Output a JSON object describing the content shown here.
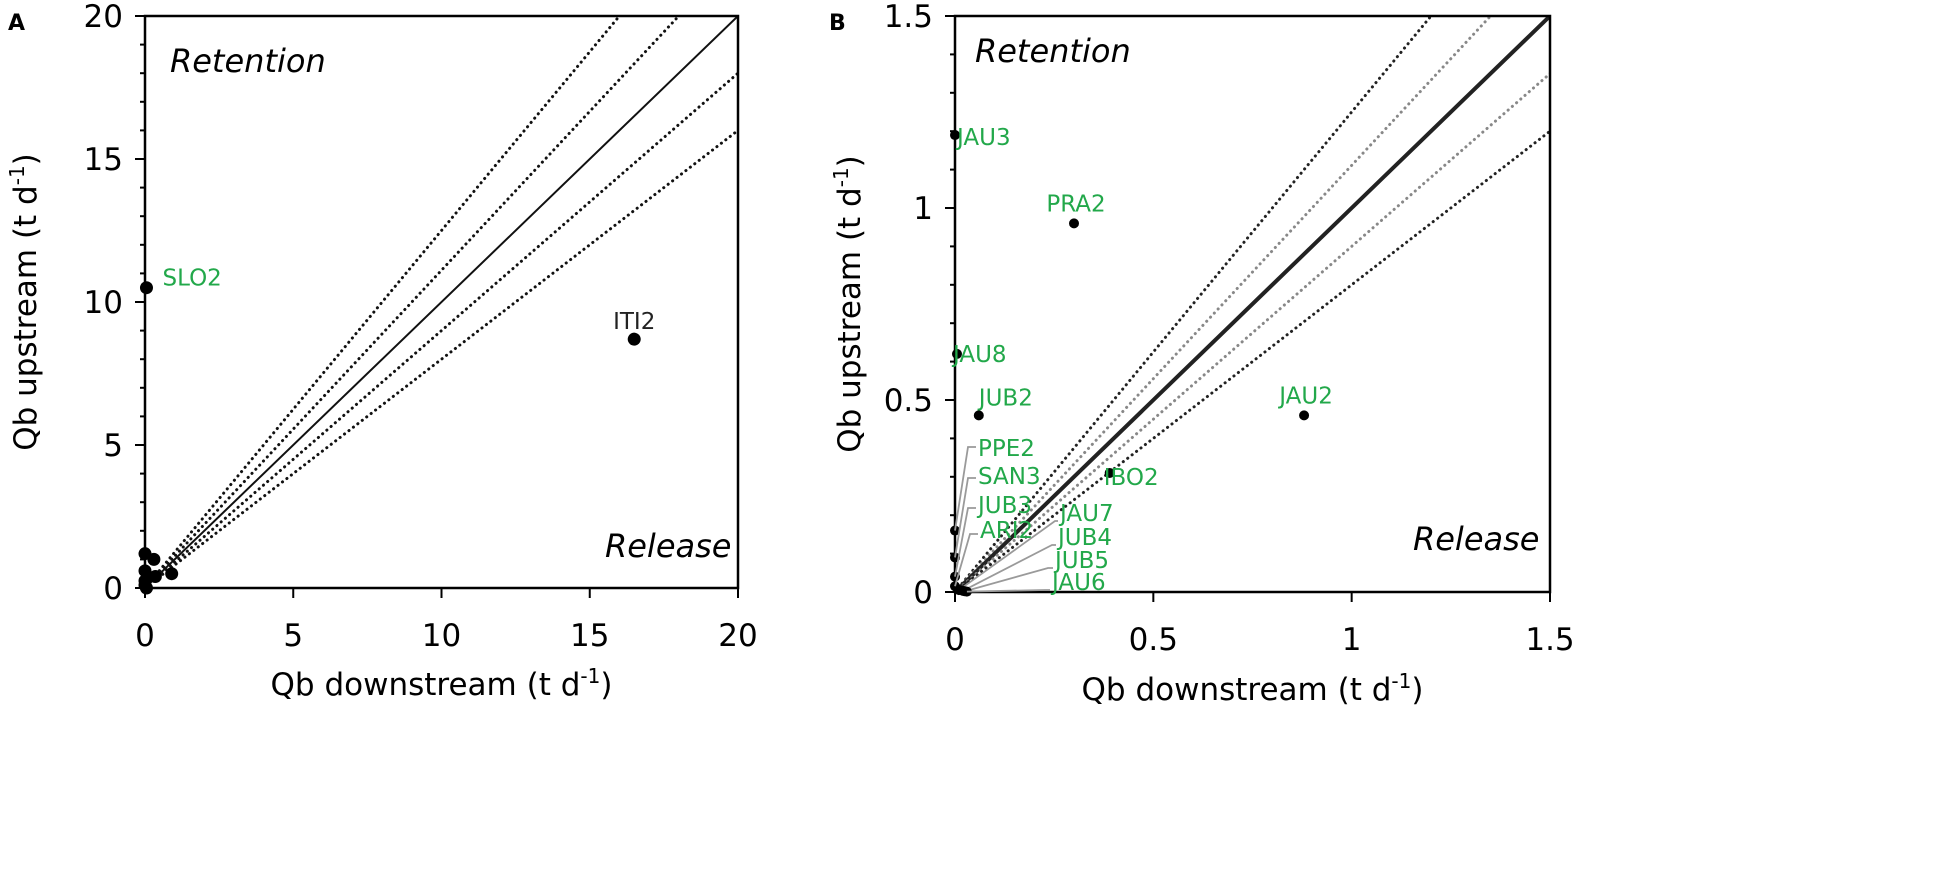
{
  "chart_data": [
    {
      "panel": "A",
      "type": "scatter",
      "xlabel": "Qb downstream (t d",
      "ylabel": "Qb upstream (t d",
      "unit_superscript": "-1",
      "xlim": [
        0,
        20
      ],
      "ylim": [
        0,
        20
      ],
      "xticks": [
        0,
        5,
        10,
        15,
        20
      ],
      "yticks": [
        0,
        5,
        10,
        15,
        20
      ],
      "region_labels": {
        "upper": "Retention",
        "lower": "Release"
      },
      "reference_lines": [
        {
          "slope": 1.25,
          "style": "dotted"
        },
        {
          "slope": 1.111,
          "style": "dotted"
        },
        {
          "slope": 1.0,
          "style": "solid"
        },
        {
          "slope": 0.9,
          "style": "dotted"
        },
        {
          "slope": 0.8,
          "style": "dotted"
        }
      ],
      "points": [
        {
          "x": 0.05,
          "y": 10.5,
          "label": "SLO2",
          "label_color": "#22a84a"
        },
        {
          "x": 16.5,
          "y": 8.7,
          "label": "ITI2",
          "label_color": "#222222"
        },
        {
          "x": 0.0,
          "y": 1.2
        },
        {
          "x": 0.0,
          "y": 0.6
        },
        {
          "x": 0.0,
          "y": 0.25
        },
        {
          "x": 0.0,
          "y": 0.1
        },
        {
          "x": 0.05,
          "y": 0.0
        },
        {
          "x": 0.3,
          "y": 1.0
        },
        {
          "x": 0.35,
          "y": 0.4
        },
        {
          "x": 0.9,
          "y": 0.5
        }
      ]
    },
    {
      "panel": "B",
      "type": "scatter",
      "xlabel": "Qb downstream (t d",
      "ylabel": "Qb upstream (t d",
      "unit_superscript": "-1",
      "xlim": [
        0,
        1.5
      ],
      "ylim": [
        0,
        1.5
      ],
      "xticks": [
        0,
        0.5,
        1,
        1.5
      ],
      "yticks": [
        0,
        0.5,
        1,
        1.5
      ],
      "region_labels": {
        "upper": "Retention",
        "lower": "Release"
      },
      "reference_lines": [
        {
          "slope": 1.25,
          "style": "dotted",
          "color": "#222222"
        },
        {
          "slope": 1.111,
          "style": "dotted",
          "color": "#888888"
        },
        {
          "slope": 1.0,
          "style": "solid",
          "color": "#222222"
        },
        {
          "slope": 0.9,
          "style": "dotted",
          "color": "#888888"
        },
        {
          "slope": 0.8,
          "style": "dotted",
          "color": "#222222"
        }
      ],
      "points": [
        {
          "x": 0.0,
          "y": 1.19,
          "label": "JAU3"
        },
        {
          "x": 0.3,
          "y": 0.96,
          "label": "PRA2"
        },
        {
          "x": 0.005,
          "y": 0.62,
          "label": "JAU8"
        },
        {
          "x": 0.06,
          "y": 0.46,
          "label": "JUB2"
        },
        {
          "x": 0.88,
          "y": 0.46,
          "label": "JAU2"
        },
        {
          "x": 0.39,
          "y": 0.31,
          "label": "IBO2"
        },
        {
          "x": 0.0,
          "y": 0.16,
          "label": "PPE2",
          "leader": true
        },
        {
          "x": 0.0,
          "y": 0.09,
          "label": "SAN3",
          "leader": true
        },
        {
          "x": 0.0,
          "y": 0.04,
          "label": "JUB3",
          "leader": true
        },
        {
          "x": 0.0,
          "y": 0.015,
          "label": "ARI2",
          "leader": true
        },
        {
          "x": 0.01,
          "y": 0.005,
          "label": "JAU7",
          "leader": true
        },
        {
          "x": 0.02,
          "y": 0.003,
          "label": "JUB4",
          "leader": true
        },
        {
          "x": 0.025,
          "y": 0.002,
          "label": "JUB5",
          "leader": true
        },
        {
          "x": 0.03,
          "y": 0.001,
          "label": "JAU6",
          "leader": true
        }
      ],
      "label_color": "#22a84a"
    }
  ]
}
